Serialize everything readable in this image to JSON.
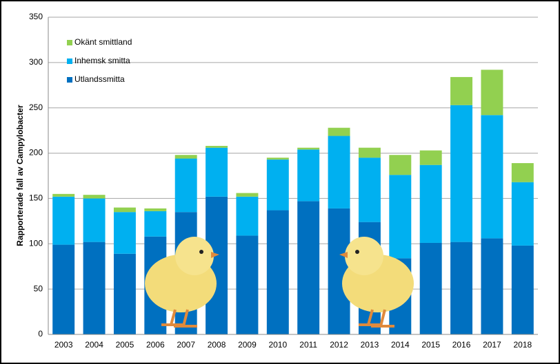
{
  "chart_data": {
    "type": "stacked_bar",
    "y_label": "Rapporterade fall av Campylobacter",
    "categories": [
      "2003",
      "2004",
      "2005",
      "2006",
      "2007",
      "2008",
      "2009",
      "2010",
      "2011",
      "2012",
      "2013",
      "2014",
      "2015",
      "2016",
      "2017",
      "2018"
    ],
    "series": [
      {
        "name": "Utlandssmitta",
        "color": "#0070c0",
        "values": [
          99,
          102,
          89,
          108,
          135,
          152,
          109,
          137,
          147,
          139,
          124,
          84,
          101,
          102,
          106,
          98
        ]
      },
      {
        "name": "Inhemsk smitta",
        "color": "#00b0f0",
        "values": [
          53,
          48,
          46,
          28,
          59,
          54,
          43,
          56,
          57,
          80,
          71,
          92,
          86,
          151,
          136,
          70
        ]
      },
      {
        "name": "Okänt smittland",
        "color": "#92d050",
        "values": [
          3,
          4,
          5,
          3,
          4,
          2,
          4,
          2,
          2,
          9,
          11,
          22,
          16,
          31,
          50,
          21
        ]
      }
    ],
    "ylim": [
      0,
      350
    ],
    "yticks": [
      0,
      50,
      100,
      150,
      200,
      250,
      300,
      350
    ],
    "grid": true
  }
}
